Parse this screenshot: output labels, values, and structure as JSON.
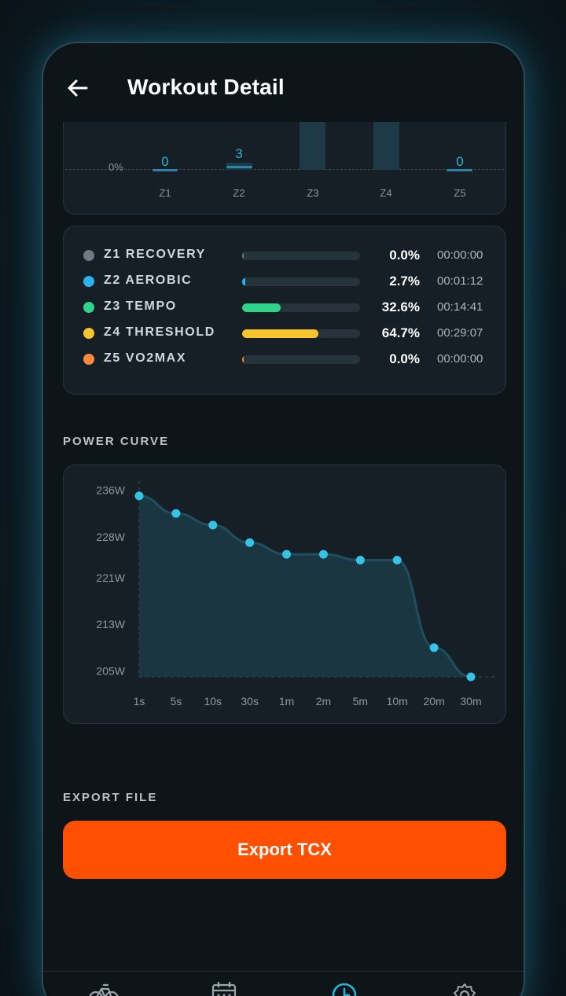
{
  "header": {
    "title": "Workout Detail"
  },
  "zone_histogram": {
    "zero_label": "0%",
    "bars": [
      {
        "zone": "Z1",
        "value_label": "0"
      },
      {
        "zone": "Z2",
        "value_label": "3"
      },
      {
        "zone": "Z3",
        "value_label": ""
      },
      {
        "zone": "Z4",
        "value_label": ""
      },
      {
        "zone": "Z5",
        "value_label": "0"
      }
    ]
  },
  "zones": [
    {
      "name": "Z1 RECOVERY",
      "percent": "0.0%",
      "time": "00:00:00",
      "fraction": 0.0,
      "color": "#6f7b84"
    },
    {
      "name": "Z2 AEROBIC",
      "percent": "2.7%",
      "time": "00:01:12",
      "fraction": 0.027,
      "color": "#2ab3ef"
    },
    {
      "name": "Z3 TEMPO",
      "percent": "32.6%",
      "time": "00:14:41",
      "fraction": 0.326,
      "color": "#2fd389"
    },
    {
      "name": "Z4 THRESHOLD",
      "percent": "64.7%",
      "time": "00:29:07",
      "fraction": 0.647,
      "color": "#f9c52b"
    },
    {
      "name": "Z5 VO2MAX",
      "percent": "0.0%",
      "time": "00:00:00",
      "fraction": 0.0,
      "color": "#ff8a3d"
    }
  ],
  "power_curve": {
    "label": "POWER CURVE"
  },
  "chart_data": {
    "type": "area",
    "title": "POWER CURVE",
    "xlabel": "",
    "ylabel": "",
    "categories": [
      "1s",
      "5s",
      "10s",
      "30s",
      "1m",
      "2m",
      "5m",
      "10m",
      "20m",
      "30m"
    ],
    "values": [
      235,
      232,
      230,
      227,
      225,
      225,
      224,
      224,
      209,
      204
    ],
    "y_ticks": [
      "236W",
      "228W",
      "221W",
      "213W",
      "205W"
    ],
    "y_tick_values": [
      236,
      228,
      221,
      213,
      205
    ],
    "ylim": [
      204,
      237
    ],
    "grid": false,
    "colors": {
      "line": "#2ab3d6",
      "fill": "#1b3a45",
      "point": "#35c4e6"
    }
  },
  "export": {
    "label": "EXPORT FILE",
    "button": "Export TCX"
  },
  "nav": {
    "items": [
      {
        "icon": "bike-icon"
      },
      {
        "icon": "calendar-icon"
      },
      {
        "icon": "history-clock-icon"
      },
      {
        "icon": "gear-icon"
      }
    ]
  }
}
